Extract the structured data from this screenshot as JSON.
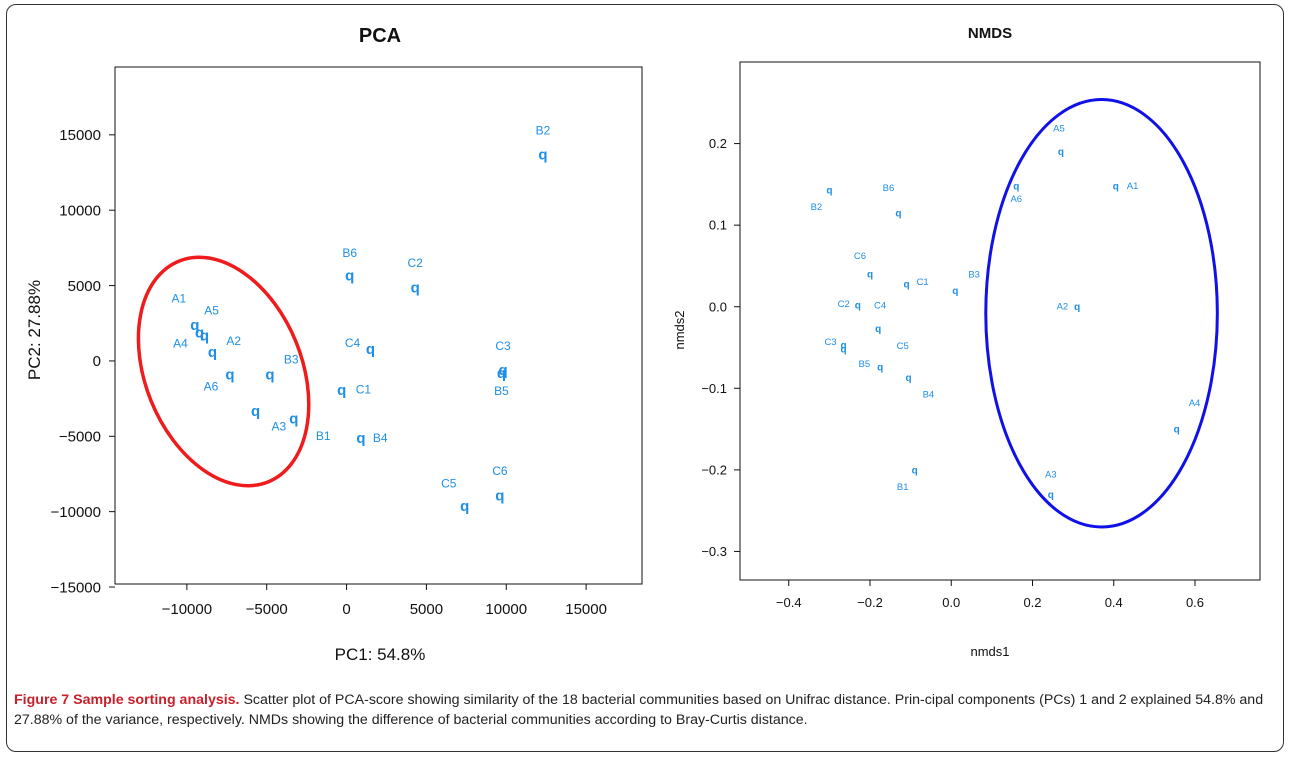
{
  "colors": {
    "points": "#1e8fe8",
    "pca_ellipse": "#ee1c1c",
    "nmds_ellipse": "#1010e8"
  },
  "caption": {
    "lead": "Figure 7 Sample sorting analysis.",
    "text": " Scatter plot of PCA-score showing similarity of the 18 bacterial communities based on Unifrac distance. Prin-cipal components (PCs) 1 and 2 explained 54.8% and 27.88% of the variance, respectively. NMDs showing the difference of bacterial communities according to Bray-Curtis distance."
  },
  "chart_data": [
    {
      "type": "scatter",
      "title": "PCA",
      "xlabel": "PC1: 54.8%",
      "ylabel": "PC2:  27.88%",
      "xlim": [
        -14500,
        18500
      ],
      "ylim": [
        -14800,
        19500
      ],
      "xticks": [
        -10000,
        -5000,
        0,
        5000,
        10000,
        15000
      ],
      "xtick_labels": [
        "−10000",
        "−5000",
        "0",
        "5000",
        "10000",
        "15000"
      ],
      "yticks": [
        -15000,
        -10000,
        -5000,
        0,
        5000,
        10000,
        15000
      ],
      "ytick_labels": [
        "−15000",
        "−10000",
        "−5000",
        "0",
        "5000",
        "10000",
        "15000"
      ],
      "grid": false,
      "ellipse": {
        "cx": -7700,
        "cy": -700,
        "rx": 4900,
        "ry": 7900,
        "angle": -22
      },
      "points": [
        {
          "label": "A1",
          "x": -9500,
          "y": 2400
        },
        {
          "label": "A5",
          "x": -9200,
          "y": 1900
        },
        {
          "label": "A4",
          "x": -8900,
          "y": 1700
        },
        {
          "label": "A2",
          "x": -8400,
          "y": 600
        },
        {
          "label": "A6",
          "x": -7300,
          "y": -900
        },
        {
          "label": "B3",
          "x": -4800,
          "y": -900
        },
        {
          "label": "A3",
          "x": -5700,
          "y": -3300
        },
        {
          "label": "B1",
          "x": -3300,
          "y": -3800
        },
        {
          "label": "C1",
          "x": -300,
          "y": -1900
        },
        {
          "label": "C4",
          "x": 1500,
          "y": 800
        },
        {
          "label": "B6",
          "x": 200,
          "y": 5700
        },
        {
          "label": "C2",
          "x": 4300,
          "y": 4900
        },
        {
          "label": "B4",
          "x": 900,
          "y": -5100
        },
        {
          "label": "C3",
          "x": 9800,
          "y": -600
        },
        {
          "label": "B5",
          "x": 9700,
          "y": -800
        },
        {
          "label": "B2",
          "x": 12300,
          "y": 13700
        },
        {
          "label": "C5",
          "x": 7400,
          "y": -9600
        },
        {
          "label": "C6",
          "x": 9600,
          "y": -8900
        }
      ]
    },
    {
      "type": "scatter",
      "title": "NMDS",
      "xlabel": "nmds1",
      "ylabel": "nmds2",
      "xlim": [
        -0.52,
        0.76
      ],
      "ylim": [
        -0.335,
        0.3
      ],
      "xticks": [
        -0.4,
        -0.2,
        0.0,
        0.2,
        0.4,
        0.6
      ],
      "xtick_labels": [
        "−0.4",
        "−0.2",
        "0.0",
        "0.2",
        "0.4",
        "0.6"
      ],
      "yticks": [
        -0.3,
        -0.2,
        -0.1,
        0.0,
        0.1,
        0.2
      ],
      "ytick_labels": [
        "−0.3",
        "−0.2",
        "−0.1",
        "0.0",
        "0.1",
        "0.2"
      ],
      "grid": false,
      "ellipse": {
        "cx": 0.37,
        "cy": -0.008,
        "rx": 0.285,
        "ry": 0.262,
        "angle": 0
      },
      "points": [
        {
          "label": "A5",
          "x": 0.27,
          "y": 0.19
        },
        {
          "label": "A1",
          "x": 0.405,
          "y": 0.148
        },
        {
          "label": "A6",
          "x": 0.16,
          "y": 0.148
        },
        {
          "label": "B6",
          "x": -0.13,
          "y": 0.115
        },
        {
          "label": "B2",
          "x": -0.3,
          "y": 0.143
        },
        {
          "label": "C6",
          "x": -0.2,
          "y": 0.04
        },
        {
          "label": "C1",
          "x": -0.11,
          "y": 0.028
        },
        {
          "label": "B3",
          "x": 0.01,
          "y": 0.02
        },
        {
          "label": "C2",
          "x": -0.23,
          "y": 0.002
        },
        {
          "label": "A2",
          "x": 0.31,
          "y": 0.0
        },
        {
          "label": "C4",
          "x": -0.18,
          "y": -0.027
        },
        {
          "label": "C3",
          "x": -0.265,
          "y": -0.047
        },
        {
          "label": "B5",
          "x": -0.175,
          "y": -0.074
        },
        {
          "label": "C5",
          "x": -0.265,
          "y": -0.052
        },
        {
          "label": "B4",
          "x": -0.105,
          "y": -0.087
        },
        {
          "label": "A4",
          "x": 0.555,
          "y": -0.15
        },
        {
          "label": "B1",
          "x": -0.09,
          "y": -0.2
        },
        {
          "label": "A3",
          "x": 0.245,
          "y": -0.23
        }
      ]
    }
  ]
}
